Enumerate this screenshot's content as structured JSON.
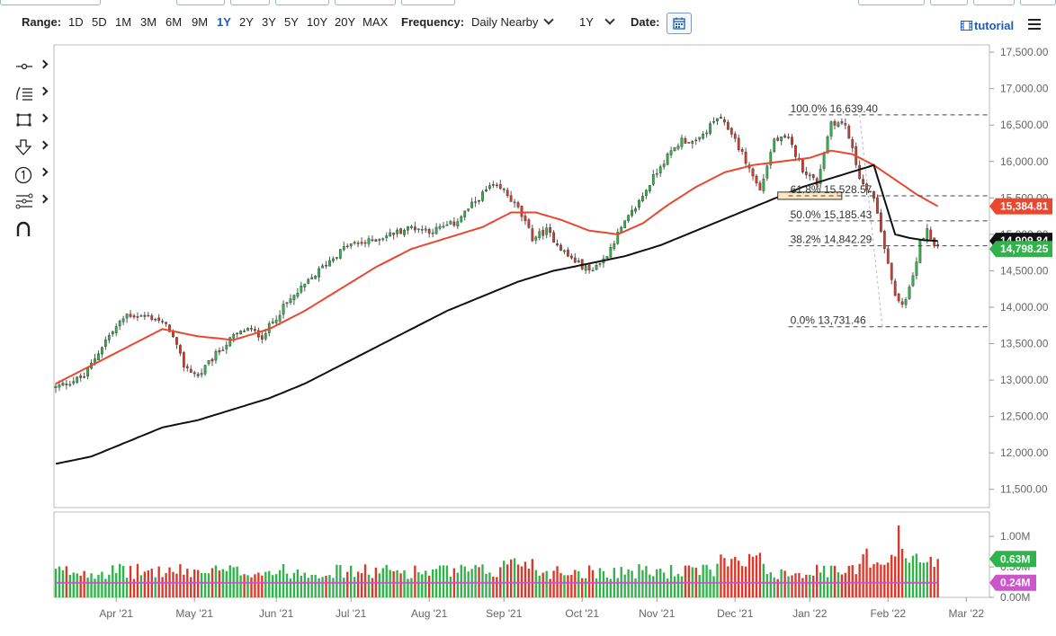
{
  "toolbar": {
    "range_label": "Range:",
    "ranges": [
      "1D",
      "5D",
      "1M",
      "3M",
      "6M",
      "9M",
      "1Y",
      "2Y",
      "3Y",
      "5Y",
      "10Y",
      "20Y",
      "MAX"
    ],
    "active_range": "1Y",
    "frequency_label": "Frequency:",
    "frequency_value": "Daily Nearby",
    "period_value": "1Y",
    "date_label": "Date:",
    "tutorial_label": "tutorial"
  },
  "icons": [
    "crosshair-icon",
    "trendline-icon",
    "rectangle-icon",
    "arrow-down-icon",
    "circle-one-icon",
    "fibonacci-icon",
    "magnet-icon",
    "calendar-icon",
    "menu-icon"
  ],
  "colors": {
    "up": "#2fb34a",
    "down": "#d9392b",
    "ma_short": "#e8482f",
    "ma_long": "#111111",
    "vol_avg": "#cc55cc",
    "accent": "#1a5cb8"
  },
  "chart_data": {
    "type": "candlestick",
    "price_axis": {
      "ylim": [
        11250,
        17600
      ],
      "ticks": [
        11500,
        12000,
        12500,
        13000,
        13500,
        14000,
        14500,
        15000,
        15500,
        16000,
        16500,
        17000,
        17500
      ],
      "tick_labels": [
        "11,500.00",
        "12,000.00",
        "12,500.00",
        "13,000.00",
        "13,500.00",
        "14,000.00",
        "14,500.00",
        "15,000.00",
        "15,500.00",
        "16,000.00",
        "16,500.00",
        "17,000.00",
        "17,500.00"
      ]
    },
    "volume_axis": {
      "ylim": [
        0,
        1.4
      ],
      "ticks": [
        0,
        0.5,
        1.0
      ],
      "tick_labels": [
        "0.00M",
        "0.50M",
        "1.00M"
      ]
    },
    "x_axis": {
      "ticks": [
        17,
        39,
        62,
        83,
        105,
        126,
        148,
        169,
        191,
        212,
        234,
        256
      ],
      "tick_labels": [
        "Apr '21",
        "May '21",
        "Jun '21",
        "Jul '21",
        "Aug '21",
        "Sep '21",
        "Oct '21",
        "Nov '21",
        "Dec '21",
        "Jan '22",
        "Feb '22",
        "Mar '22"
      ],
      "max_index": 262
    },
    "anchors": [
      [
        0,
        12900
      ],
      [
        8,
        13050
      ],
      [
        14,
        13550
      ],
      [
        20,
        13900
      ],
      [
        28,
        13850
      ],
      [
        32,
        13700
      ],
      [
        36,
        13200
      ],
      [
        40,
        13050
      ],
      [
        45,
        13350
      ],
      [
        50,
        13600
      ],
      [
        54,
        13700
      ],
      [
        58,
        13600
      ],
      [
        64,
        14000
      ],
      [
        70,
        14300
      ],
      [
        76,
        14600
      ],
      [
        82,
        14850
      ],
      [
        88,
        14900
      ],
      [
        94,
        15000
      ],
      [
        100,
        15100
      ],
      [
        106,
        15050
      ],
      [
        112,
        15150
      ],
      [
        118,
        15450
      ],
      [
        122,
        15650
      ],
      [
        126,
        15600
      ],
      [
        130,
        15350
      ],
      [
        134,
        14950
      ],
      [
        138,
        15050
      ],
      [
        144,
        14700
      ],
      [
        150,
        14500
      ],
      [
        154,
        14650
      ],
      [
        158,
        15000
      ],
      [
        164,
        15450
      ],
      [
        170,
        15950
      ],
      [
        176,
        16300
      ],
      [
        180,
        16250
      ],
      [
        186,
        16600
      ],
      [
        190,
        16400
      ],
      [
        194,
        16000
      ],
      [
        198,
        15600
      ],
      [
        202,
        16300
      ],
      [
        206,
        16300
      ],
      [
        210,
        15900
      ],
      [
        214,
        15700
      ],
      [
        218,
        16550
      ],
      [
        222,
        16500
      ],
      [
        226,
        15800
      ],
      [
        230,
        15500
      ],
      [
        232,
        15000
      ],
      [
        234,
        14600
      ],
      [
        236,
        14150
      ],
      [
        238,
        14000
      ],
      [
        241,
        14400
      ],
      [
        243,
        14900
      ],
      [
        245,
        15050
      ],
      [
        248,
        14800
      ]
    ],
    "ma_short": {
      "values": [
        [
          0,
          12950
        ],
        [
          10,
          13200
        ],
        [
          20,
          13450
        ],
        [
          30,
          13700
        ],
        [
          40,
          13600
        ],
        [
          50,
          13550
        ],
        [
          60,
          13700
        ],
        [
          70,
          13950
        ],
        [
          80,
          14250
        ],
        [
          90,
          14550
        ],
        [
          100,
          14800
        ],
        [
          110,
          14950
        ],
        [
          120,
          15100
        ],
        [
          128,
          15300
        ],
        [
          135,
          15300
        ],
        [
          142,
          15200
        ],
        [
          150,
          15050
        ],
        [
          158,
          15000
        ],
        [
          165,
          15150
        ],
        [
          172,
          15400
        ],
        [
          180,
          15650
        ],
        [
          188,
          15850
        ],
        [
          196,
          15950
        ],
        [
          204,
          16000
        ],
        [
          212,
          16050
        ],
        [
          218,
          16150
        ],
        [
          224,
          16100
        ],
        [
          230,
          15950
        ],
        [
          236,
          15750
        ],
        [
          242,
          15550
        ],
        [
          248,
          15384.81
        ]
      ]
    },
    "ma_long": {
      "values": [
        [
          0,
          11850
        ],
        [
          10,
          11950
        ],
        [
          20,
          12150
        ],
        [
          30,
          12350
        ],
        [
          40,
          12450
        ],
        [
          50,
          12600
        ],
        [
          60,
          12750
        ],
        [
          70,
          12950
        ],
        [
          80,
          13200
        ],
        [
          90,
          13450
        ],
        [
          100,
          13700
        ],
        [
          110,
          13950
        ],
        [
          120,
          14150
        ],
        [
          130,
          14350
        ],
        [
          140,
          14500
        ],
        [
          150,
          14600
        ],
        [
          160,
          14700
        ],
        [
          170,
          14850
        ],
        [
          180,
          15050
        ],
        [
          190,
          15250
        ],
        [
          200,
          15450
        ],
        [
          210,
          15650
        ],
        [
          220,
          15800
        ],
        [
          230,
          15950
        ],
        [
          236,
          15000
        ],
        [
          240,
          14950
        ],
        [
          244,
          14920
        ],
        [
          248,
          14909.84
        ]
      ]
    },
    "fib_levels": [
      {
        "label": "100.0% 16,639.40",
        "value": 16639.4
      },
      {
        "label": "61.8% 15,528.57",
        "value": 15528.57
      },
      {
        "label": "50.0% 15,185.43",
        "value": 15185.43
      },
      {
        "label": "38.2% 14,842.29",
        "value": 14842.29
      },
      {
        "label": "0.0% 13,731.46",
        "value": 13731.46
      }
    ],
    "fib_swing": {
      "from_index": 226,
      "to_index": 240
    },
    "zone": {
      "from_index": 203,
      "to_index": 221,
      "low": 15480,
      "high": 15580
    },
    "last_values": [
      {
        "label": "15,384.81",
        "value": 15384.81,
        "color": "#e8482f"
      },
      {
        "label": "14,909.84",
        "value": 14909.84,
        "color": "#111111"
      },
      {
        "label": "14,798.25",
        "value": 14798.25,
        "color": "#2fb34a"
      }
    ],
    "volume_badges": [
      {
        "label": "0.63M",
        "value": 0.63,
        "color": "#2fb34a"
      },
      {
        "label": "0.24M",
        "value": 0.24,
        "color": "#cc55cc"
      }
    ],
    "volume_avg": 0.24
  }
}
